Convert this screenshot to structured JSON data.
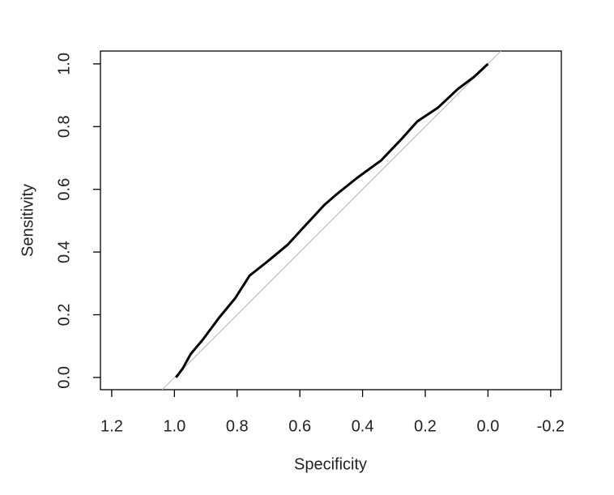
{
  "chart_data": {
    "type": "line",
    "x_label": "Specificity",
    "y_label": "Sensitivity",
    "x": [
      0.995,
      0.974,
      0.948,
      0.91,
      0.858,
      0.806,
      0.76,
      0.703,
      0.638,
      0.587,
      0.522,
      0.483,
      0.418,
      0.341,
      0.276,
      0.225,
      0.16,
      0.096,
      0.044,
      0
    ],
    "values": [
      0,
      0.028,
      0.075,
      0.12,
      0.19,
      0.253,
      0.325,
      0.37,
      0.424,
      0.48,
      0.55,
      0.584,
      0.636,
      0.692,
      0.76,
      0.817,
      0.86,
      0.92,
      0.959,
      1
    ],
    "color": "#000000",
    "reference_line_color": "#bebebe",
    "xlim": [
      1.236,
      -0.234
    ],
    "ylim": [
      -0.039,
      1.041
    ],
    "xticks": [
      1.2,
      {
        "value": 1,
        "label": "1.0"
      },
      0.8,
      0.6,
      0.4,
      0.2,
      {
        "value": 0,
        "label": "0.0"
      },
      -0.2
    ],
    "yticks": [
      {
        "value": 0,
        "label": "0.0"
      },
      0.2,
      0.4,
      0.6,
      0.8,
      {
        "value": 1,
        "label": "1.0"
      }
    ]
  }
}
